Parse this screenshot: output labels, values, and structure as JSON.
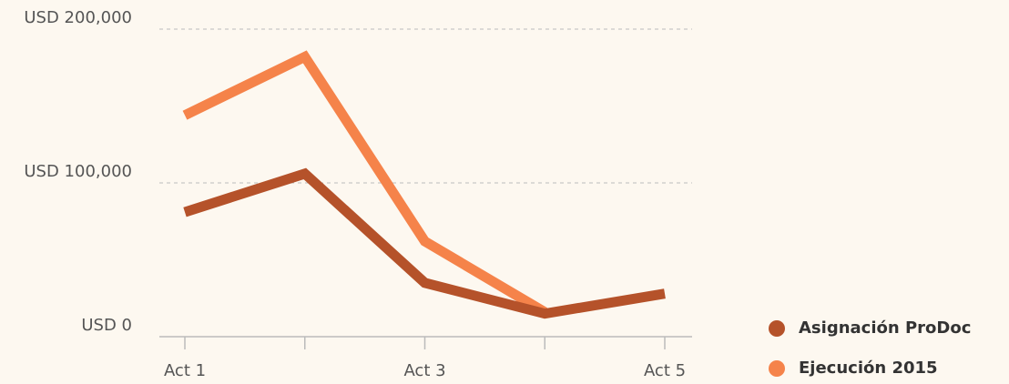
{
  "chart_data": {
    "type": "line",
    "categories": [
      "Act 1",
      null,
      "Act 3",
      null,
      "Act 5"
    ],
    "series": [
      {
        "name": "Asignación ProDoc",
        "color": "#b5522a",
        "values": [
          81000,
          106000,
          35000,
          15000,
          28000
        ]
      },
      {
        "name": "Ejecución 2015",
        "color": "#f5834a",
        "values": [
          144000,
          182000,
          62000,
          16000,
          null
        ]
      }
    ],
    "ylim": [
      0,
      200000
    ],
    "yticks": [
      {
        "value": 0,
        "label": "USD 0"
      },
      {
        "value": 100000,
        "label": "USD 100,000"
      },
      {
        "value": 200000,
        "label": "USD 200,000"
      }
    ],
    "grid": true,
    "legend": "bottom-right"
  }
}
